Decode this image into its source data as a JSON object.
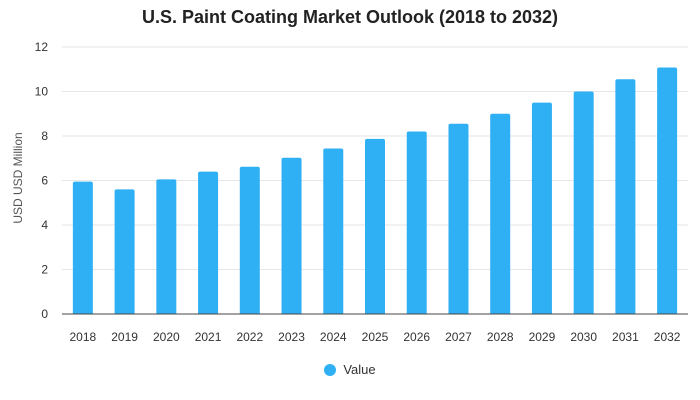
{
  "chart_data": {
    "type": "bar",
    "title": "U.S. Paint Coating Market Outlook (2018 to 2032)",
    "xlabel": "",
    "ylabel": "USD USD Million",
    "categories": [
      "2018",
      "2019",
      "2020",
      "2021",
      "2022",
      "2023",
      "2024",
      "2025",
      "2026",
      "2027",
      "2028",
      "2029",
      "2030",
      "2031",
      "2032"
    ],
    "series": [
      {
        "name": "Value",
        "color": "#2fb0f4",
        "values": [
          5.95,
          5.6,
          6.05,
          6.4,
          6.62,
          7.02,
          7.44,
          7.87,
          8.2,
          8.55,
          9.0,
          9.5,
          10.0,
          10.55,
          11.08
        ]
      }
    ],
    "ylim": [
      0,
      12
    ],
    "yticks": [
      0,
      2,
      4,
      6,
      8,
      10,
      12
    ],
    "grid": true,
    "legend": "bottom"
  }
}
